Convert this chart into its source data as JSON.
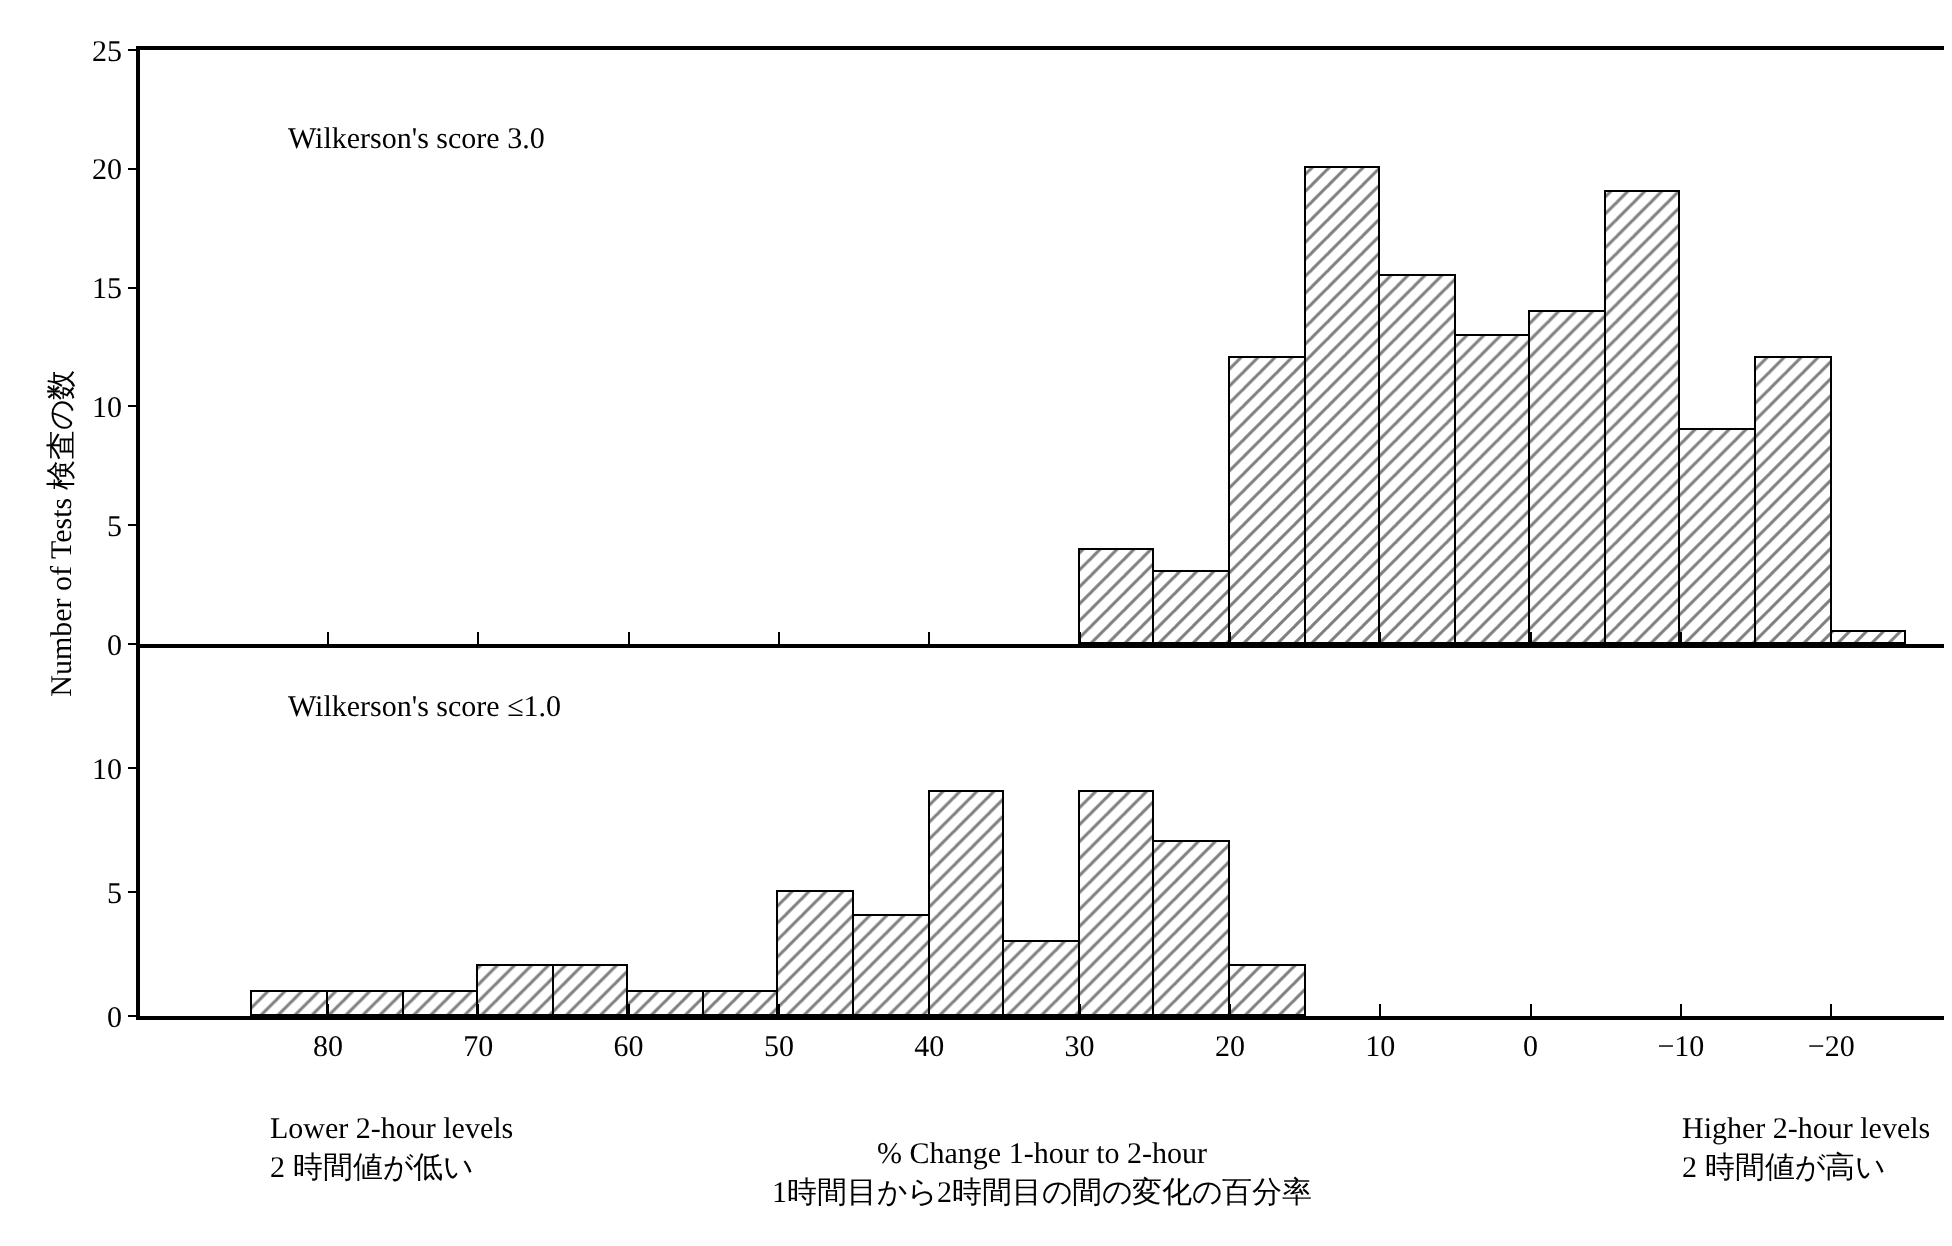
{
  "chart_data": [
    {
      "type": "histogram",
      "ylabel": "Number of Tests 検査の数",
      "annotations": [
        "Wilkerson's score 3.0"
      ],
      "bins": [
        30,
        25,
        20,
        15,
        10,
        5,
        0,
        -5,
        -10,
        -15,
        -20,
        -25
      ],
      "values": [
        4,
        3,
        12,
        20,
        15.5,
        13,
        14,
        19,
        9,
        12,
        0.5
      ],
      "color": "#000000",
      "xlim": [
        92.5,
        -27.5
      ],
      "xticks": [
        {
          "value": 80,
          "label": null
        },
        {
          "value": 70,
          "label": null
        },
        {
          "value": 60,
          "label": null
        },
        {
          "value": 50,
          "label": null
        },
        {
          "value": 40,
          "label": null
        },
        {
          "value": 30,
          "label": null
        },
        {
          "value": 20,
          "label": null
        },
        {
          "value": 10,
          "label": null
        },
        {
          "value": 0,
          "label": null
        },
        {
          "value": -10,
          "label": null
        },
        {
          "value": -20,
          "label": null
        }
      ],
      "ylim": [
        0,
        25
      ],
      "yticks": [
        0,
        5,
        10,
        15,
        20,
        25
      ],
      "tick_labels": "y",
      "grid": false
    },
    {
      "type": "histogram",
      "xlabel": "% Change 1-hour to 2-hour\n1時間目から2時間目の間の変化の百分率",
      "annotations": [
        "Wilkerson's score ≤1.0",
        "Lower 2-hour levels\n2 時間値が低い",
        "Higher 2-hour levels\n2 時間値が高い"
      ],
      "bins": [
        85,
        80,
        75,
        70,
        65,
        60,
        55,
        50,
        45,
        40,
        35,
        30,
        25,
        20,
        15
      ],
      "values": [
        1,
        1,
        1,
        2,
        2,
        1,
        1,
        5,
        4,
        9,
        3,
        9,
        7,
        2
      ],
      "color": "#000000",
      "xlim": [
        92.5,
        -27.5
      ],
      "xticks": [
        80,
        70,
        60,
        50,
        40,
        30,
        20,
        10,
        0,
        {
          "value": -10,
          "label": "−10"
        },
        {
          "value": -20,
          "label": "−20"
        }
      ],
      "ylim": [
        0,
        15
      ],
      "yticks": [
        0,
        5,
        10
      ],
      "grid": false
    }
  ]
}
